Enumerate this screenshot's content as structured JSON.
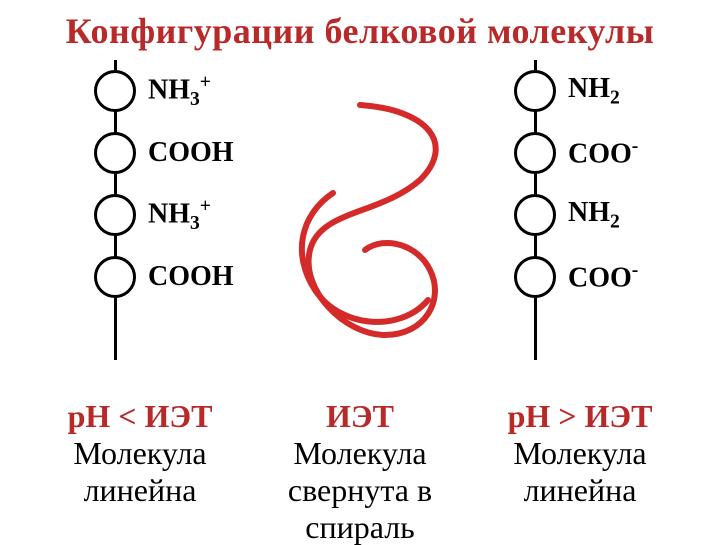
{
  "title": "Конфигурации белковой молекулы",
  "title_color": "#b82a2a",
  "title_fontsize": 36,
  "left_groups": [
    {
      "label": "NH<sub>3</sub><sup>+</sup>"
    },
    {
      "label": "COOH"
    },
    {
      "label": "NH<sub>3</sub><sup>+</sup>"
    },
    {
      "label": "COOH"
    }
  ],
  "right_groups": [
    {
      "label": "NH<sub>2</sub>"
    },
    {
      "label": "COO<sup>-</sup>"
    },
    {
      "label": "NH<sub>2</sub>"
    },
    {
      "label": "COO<sup>-</sup>"
    }
  ],
  "spine_height": 300,
  "spiral": {
    "stroke": "#d42a2a",
    "stroke_width": 6,
    "paths": [
      "M90,20 C160,25 185,60 150,95 C110,130 50,125 40,165 C30,205 75,250 115,250 C155,250 175,215 160,185 C148,160 115,150 95,165",
      "M63,108 C30,130 22,170 45,205 C70,243 130,248 158,215"
    ]
  },
  "captions": {
    "left": {
      "cond": "pH < ИЭТ",
      "line1": "Молекула",
      "line2": "линейна"
    },
    "mid": {
      "cond": "ИЭТ",
      "line1": "Молекула",
      "line2": "свернута в",
      "line3": "спираль"
    },
    "right": {
      "cond": "pH > ИЭТ",
      "line1": "Молекула",
      "line2": "линейна"
    }
  },
  "cond_color": "#b82a2a",
  "desc_color": "#000000",
  "bead_border": "#000000",
  "bead_fill": "#ffffff",
  "spine_color": "#000000"
}
